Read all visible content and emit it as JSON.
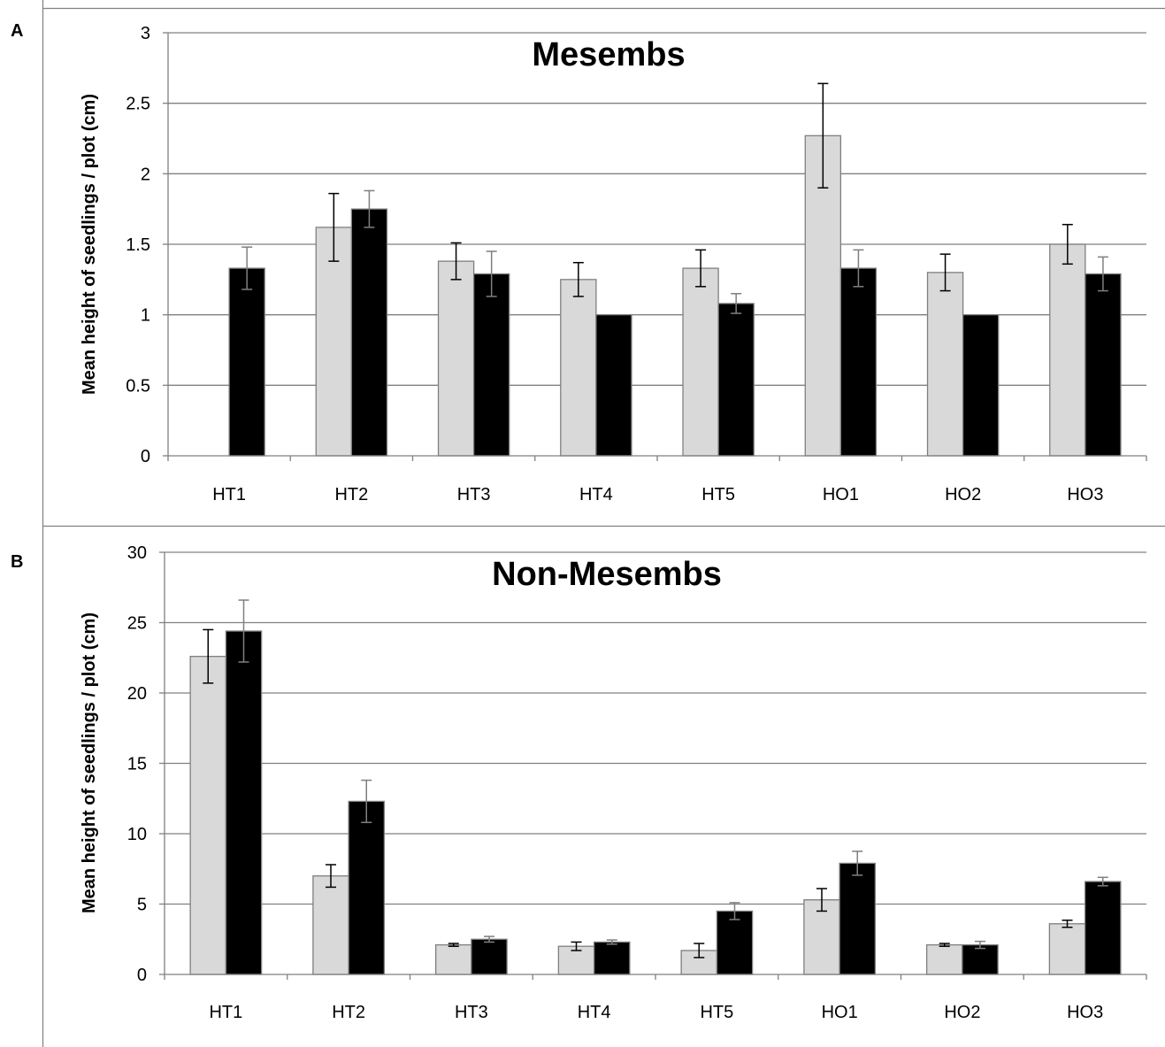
{
  "panels": [
    {
      "letter": "A"
    },
    {
      "letter": "B"
    }
  ],
  "chart_data": [
    {
      "type": "bar",
      "title": "Mesembs",
      "ylabel": "Mean height of seedlings / plot (cm)",
      "xlabel": "",
      "categories": [
        "HT1",
        "HT2",
        "HT3",
        "HT4",
        "HT5",
        "HO1",
        "HO2",
        "HO3"
      ],
      "ylim": [
        0,
        3
      ],
      "yticks": [
        "0",
        "0.5",
        "1",
        "1.5",
        "2",
        "2.5",
        "3"
      ],
      "grid": true,
      "series": [
        {
          "color": "#d9d9d9",
          "values": [
            0,
            1.62,
            1.38,
            1.25,
            1.33,
            2.27,
            1.3,
            1.5
          ],
          "errors": [
            0,
            0.24,
            0.13,
            0.12,
            0.13,
            0.37,
            0.13,
            0.14
          ]
        },
        {
          "color": "#000000",
          "values": [
            1.33,
            1.75,
            1.29,
            1.0,
            1.08,
            1.33,
            1.0,
            1.29
          ],
          "errors": [
            0.15,
            0.13,
            0.16,
            0,
            0.07,
            0.13,
            0,
            0.12
          ]
        }
      ]
    },
    {
      "type": "bar",
      "title": "Non-Mesembs",
      "ylabel": "Mean height of seedlings / plot (cm)",
      "xlabel": "",
      "categories": [
        "HT1",
        "HT2",
        "HT3",
        "HT4",
        "HT5",
        "HO1",
        "HO2",
        "HO3"
      ],
      "ylim": [
        0,
        30
      ],
      "yticks": [
        "0",
        "5",
        "10",
        "15",
        "20",
        "25",
        "30"
      ],
      "grid": true,
      "series": [
        {
          "color": "#d9d9d9",
          "values": [
            22.6,
            7.0,
            2.1,
            2.0,
            1.7,
            5.3,
            2.1,
            3.6
          ],
          "errors": [
            1.9,
            0.8,
            0.1,
            0.3,
            0.5,
            0.8,
            0.1,
            0.25
          ]
        },
        {
          "color": "#000000",
          "values": [
            24.4,
            12.3,
            2.5,
            2.3,
            4.5,
            7.9,
            2.1,
            6.6
          ],
          "errors": [
            2.2,
            1.5,
            0.2,
            0.15,
            0.6,
            0.85,
            0.25,
            0.3
          ]
        }
      ]
    }
  ]
}
